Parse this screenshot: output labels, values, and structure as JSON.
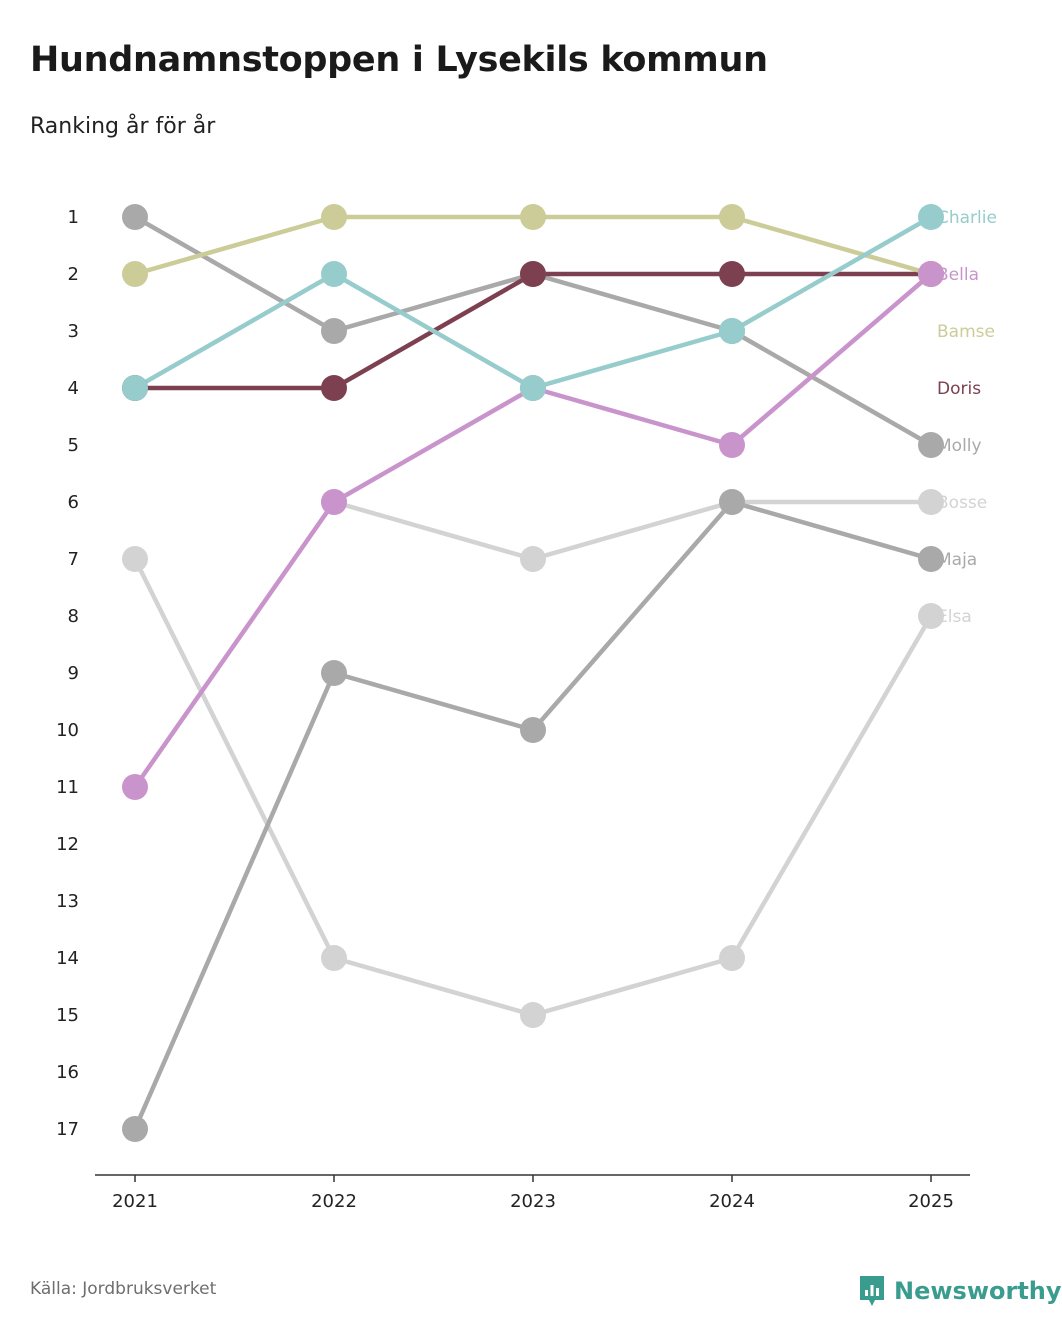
{
  "header": {
    "title": "Hundnamnstoppen i Lysekils kommun",
    "subtitle": "Ranking år för år"
  },
  "footer": {
    "source": "Källa: Jordbruksverket",
    "brand": "Newsworthy"
  },
  "colors": {
    "brand": "#3a9c8f",
    "axis": "#333333"
  },
  "chart_data": {
    "type": "line",
    "subtype": "bump",
    "title": "Hundnamnstoppen i Lysekils kommun",
    "subtitle": "Ranking år för år",
    "x": [
      "2021",
      "2022",
      "2023",
      "2024",
      "2025"
    ],
    "ylabel": "",
    "xlabel": "",
    "ylim": [
      1,
      17
    ],
    "y_inverted": true,
    "y_ticks": [
      1,
      2,
      3,
      4,
      5,
      6,
      7,
      8,
      9,
      10,
      11,
      12,
      13,
      14,
      15,
      16,
      17
    ],
    "series": [
      {
        "name": "Elsa",
        "color": "#d3d3d3",
        "values": [
          7,
          14,
          15,
          14,
          8
        ]
      },
      {
        "name": "Bosse",
        "color": "#d3d3d3",
        "values": [
          null,
          6,
          7,
          6,
          6
        ]
      },
      {
        "name": "Maja",
        "color": "#a9a9a9",
        "values": [
          17,
          9,
          10,
          6,
          7
        ]
      },
      {
        "name": "Molly",
        "color": "#a9a9a9",
        "values": [
          1,
          3,
          2,
          3,
          5
        ]
      },
      {
        "name": "Doris",
        "color": "#7d4050",
        "values": [
          4,
          4,
          2,
          2,
          2
        ]
      },
      {
        "name": "Bamse",
        "color": "#cccc99",
        "values": [
          2,
          1,
          1,
          1,
          2
        ]
      },
      {
        "name": "Bella",
        "color": "#c994cc",
        "values": [
          11,
          6,
          4,
          5,
          2
        ]
      },
      {
        "name": "Charlie",
        "color": "#96cccc",
        "values": [
          4,
          2,
          4,
          3,
          1
        ]
      }
    ],
    "end_labels": [
      {
        "name": "Charlie",
        "rank": 1
      },
      {
        "name": "Bella",
        "rank": 2
      },
      {
        "name": "Bamse",
        "rank": 3
      },
      {
        "name": "Doris",
        "rank": 4
      },
      {
        "name": "Molly",
        "rank": 5
      },
      {
        "name": "Bosse",
        "rank": 6
      },
      {
        "name": "Maja",
        "rank": 7
      },
      {
        "name": "Elsa",
        "rank": 8
      }
    ]
  }
}
